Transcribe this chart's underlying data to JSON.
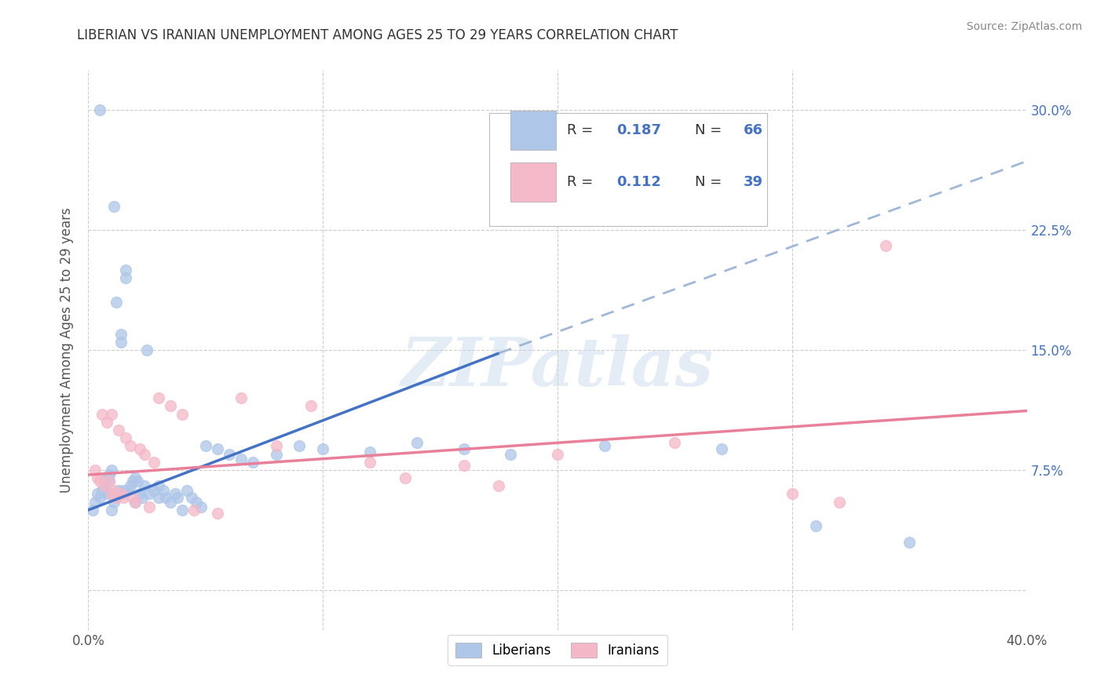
{
  "title": "LIBERIAN VS IRANIAN UNEMPLOYMENT AMONG AGES 25 TO 29 YEARS CORRELATION CHART",
  "source": "Source: ZipAtlas.com",
  "ylabel": "Unemployment Among Ages 25 to 29 years",
  "xlim": [
    0.0,
    0.4
  ],
  "ylim": [
    -0.025,
    0.325
  ],
  "background_color": "#ffffff",
  "grid_color": "#cccccc",
  "watermark": "ZIPatlas",
  "liberian_color": "#aec6e8",
  "iranian_color": "#f4b8c8",
  "liberian_line_color": "#4472c4",
  "liberian_dash_color": "#a0b8d8",
  "iranian_line_color": "#e8809a",
  "R_liberian": 0.187,
  "N_liberian": 66,
  "R_iranian": 0.112,
  "N_iranian": 39,
  "lib_x": [
    0.002,
    0.003,
    0.004,
    0.005,
    0.005,
    0.006,
    0.007,
    0.007,
    0.008,
    0.008,
    0.009,
    0.009,
    0.01,
    0.01,
    0.01,
    0.011,
    0.011,
    0.012,
    0.012,
    0.013,
    0.014,
    0.014,
    0.015,
    0.015,
    0.016,
    0.016,
    0.017,
    0.018,
    0.019,
    0.02,
    0.02,
    0.021,
    0.022,
    0.023,
    0.024,
    0.025,
    0.026,
    0.028,
    0.03,
    0.03,
    0.032,
    0.033,
    0.035,
    0.037,
    0.038,
    0.04,
    0.042,
    0.044,
    0.046,
    0.048,
    0.05,
    0.055,
    0.06,
    0.065,
    0.07,
    0.08,
    0.09,
    0.1,
    0.12,
    0.14,
    0.16,
    0.18,
    0.22,
    0.27,
    0.31,
    0.35
  ],
  "lib_y": [
    0.05,
    0.055,
    0.06,
    0.3,
    0.058,
    0.062,
    0.065,
    0.068,
    0.06,
    0.07,
    0.072,
    0.068,
    0.075,
    0.06,
    0.05,
    0.055,
    0.24,
    0.058,
    0.18,
    0.062,
    0.16,
    0.155,
    0.062,
    0.06,
    0.2,
    0.195,
    0.062,
    0.065,
    0.068,
    0.07,
    0.055,
    0.068,
    0.06,
    0.058,
    0.065,
    0.15,
    0.06,
    0.062,
    0.065,
    0.058,
    0.062,
    0.058,
    0.055,
    0.06,
    0.058,
    0.05,
    0.062,
    0.058,
    0.055,
    0.052,
    0.09,
    0.088,
    0.085,
    0.082,
    0.08,
    0.085,
    0.09,
    0.088,
    0.086,
    0.092,
    0.088,
    0.085,
    0.09,
    0.088,
    0.04,
    0.03
  ],
  "iran_x": [
    0.003,
    0.004,
    0.005,
    0.006,
    0.007,
    0.008,
    0.009,
    0.01,
    0.01,
    0.011,
    0.012,
    0.013,
    0.014,
    0.015,
    0.016,
    0.018,
    0.019,
    0.02,
    0.022,
    0.024,
    0.026,
    0.028,
    0.03,
    0.035,
    0.04,
    0.045,
    0.055,
    0.065,
    0.08,
    0.095,
    0.12,
    0.16,
    0.2,
    0.25,
    0.3,
    0.32,
    0.34,
    0.135,
    0.175
  ],
  "iran_y": [
    0.075,
    0.07,
    0.068,
    0.11,
    0.065,
    0.105,
    0.068,
    0.06,
    0.11,
    0.062,
    0.058,
    0.1,
    0.06,
    0.058,
    0.095,
    0.09,
    0.058,
    0.055,
    0.088,
    0.085,
    0.052,
    0.08,
    0.12,
    0.115,
    0.11,
    0.05,
    0.048,
    0.12,
    0.09,
    0.115,
    0.08,
    0.078,
    0.085,
    0.092,
    0.06,
    0.055,
    0.215,
    0.07,
    0.065
  ],
  "lib_trend_x0": 0.0,
  "lib_trend_y0": 0.05,
  "lib_trend_x1": 0.175,
  "lib_trend_y1": 0.148,
  "lib_trend_xend": 0.4,
  "lib_trend_yend": 0.268,
  "iran_trend_x0": 0.0,
  "iran_trend_y0": 0.072,
  "iran_trend_x1": 0.4,
  "iran_trend_y1": 0.112
}
